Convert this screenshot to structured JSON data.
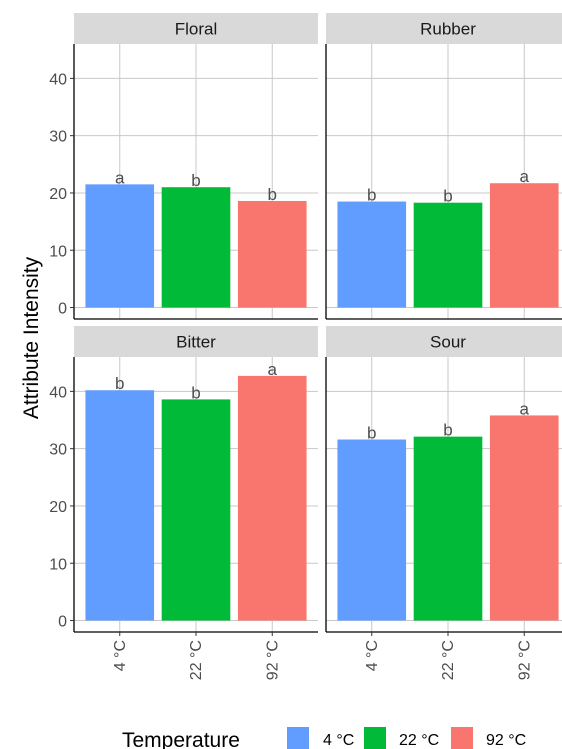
{
  "chart_data": {
    "type": "bar",
    "ylabel": "Attribute Intensity",
    "xlabel": "",
    "ylim": [
      0,
      44
    ],
    "yticks": [
      0,
      10,
      20,
      30,
      40
    ],
    "categories": [
      "4 °C",
      "22 °C",
      "92 °C"
    ],
    "grid": true,
    "legend_position": "bottom",
    "legend": {
      "title": "Temperature",
      "items": [
        {
          "label": "4 °C",
          "color": "#619CFF"
        },
        {
          "label": "22 °C",
          "color": "#00BA38"
        },
        {
          "label": "92 °C",
          "color": "#F8766D"
        }
      ]
    },
    "panels": [
      {
        "name": "Floral",
        "values": [
          21.5,
          21.0,
          18.6
        ],
        "letters": [
          "a",
          "b",
          "b"
        ]
      },
      {
        "name": "Rubber",
        "values": [
          18.5,
          18.3,
          21.7
        ],
        "letters": [
          "b",
          "b",
          "a"
        ]
      },
      {
        "name": "Bitter",
        "values": [
          40.2,
          38.6,
          42.7
        ],
        "letters": [
          "b",
          "b",
          "a"
        ]
      },
      {
        "name": "Sour",
        "values": [
          31.6,
          32.1,
          35.8
        ],
        "letters": [
          "b",
          "b",
          "a"
        ]
      }
    ]
  }
}
